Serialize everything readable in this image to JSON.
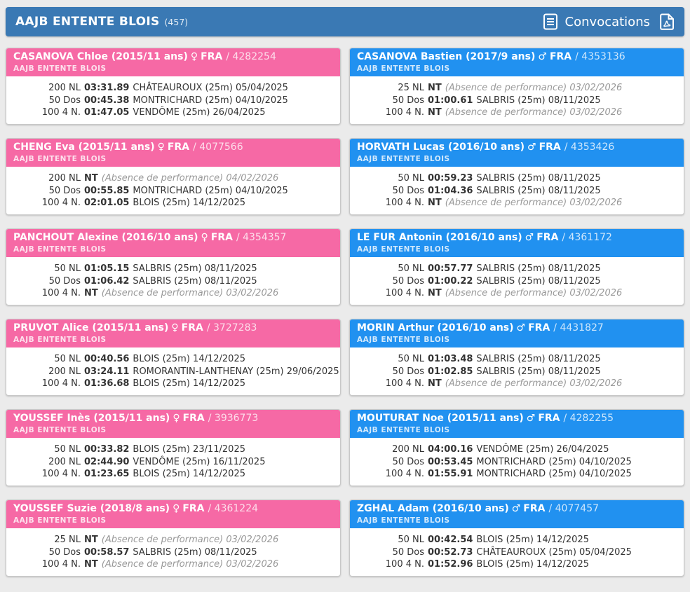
{
  "header": {
    "title": "AAJB ENTENTE BLOIS",
    "count": "(457)",
    "convocations_label": "Convocations"
  },
  "colors": {
    "bar_blue": "#3a79b4",
    "male_blue": "#2191f0",
    "female_pink": "#f669a5",
    "page_bg": "#ebebeb"
  },
  "swimmers": [
    {
      "name": "CASANOVA Chloe",
      "birth_age": "(2015/11 ans)",
      "gender": "female",
      "gender_symbol": "♀",
      "nation": "FRA",
      "license": "4282254",
      "club": "AAJB ENTENTE BLOIS",
      "performances": [
        {
          "event": "200 NL",
          "time": "03:31.89",
          "note": "CHÂTEAUROUX (25m) 05/04/2025",
          "absence": false
        },
        {
          "event": "50 Dos",
          "time": "00:45.38",
          "note": "MONTRICHARD (25m) 04/10/2025",
          "absence": false
        },
        {
          "event": "100 4 N.",
          "time": "01:47.05",
          "note": "VENDÔME (25m) 26/04/2025",
          "absence": false
        }
      ]
    },
    {
      "name": "CASANOVA Bastien",
      "birth_age": "(2017/9 ans)",
      "gender": "male",
      "gender_symbol": "♂",
      "nation": "FRA",
      "license": "4353136",
      "club": "AAJB ENTENTE BLOIS",
      "performances": [
        {
          "event": "25 NL",
          "time": "NT",
          "note": "(Absence de performance) 03/02/2026",
          "absence": true
        },
        {
          "event": "50 Dos",
          "time": "01:00.61",
          "note": "SALBRIS (25m) 08/11/2025",
          "absence": false
        },
        {
          "event": "100 4 N.",
          "time": "NT",
          "note": "(Absence de performance) 03/02/2026",
          "absence": true
        }
      ]
    },
    {
      "name": "CHENG Eva",
      "birth_age": "(2015/11 ans)",
      "gender": "female",
      "gender_symbol": "♀",
      "nation": "FRA",
      "license": "4077566",
      "club": "AAJB ENTENTE BLOIS",
      "performances": [
        {
          "event": "200 NL",
          "time": "NT",
          "note": "(Absence de performance) 04/02/2026",
          "absence": true
        },
        {
          "event": "50 Dos",
          "time": "00:55.85",
          "note": "MONTRICHARD (25m) 04/10/2025",
          "absence": false
        },
        {
          "event": "100 4 N.",
          "time": "02:01.05",
          "note": "BLOIS (25m) 14/12/2025",
          "absence": false
        }
      ]
    },
    {
      "name": "HORVATH Lucas",
      "birth_age": "(2016/10 ans)",
      "gender": "male",
      "gender_symbol": "♂",
      "nation": "FRA",
      "license": "4353426",
      "club": "AAJB ENTENTE BLOIS",
      "performances": [
        {
          "event": "50 NL",
          "time": "00:59.23",
          "note": "SALBRIS (25m) 08/11/2025",
          "absence": false
        },
        {
          "event": "50 Dos",
          "time": "01:04.36",
          "note": "SALBRIS (25m) 08/11/2025",
          "absence": false
        },
        {
          "event": "100 4 N.",
          "time": "NT",
          "note": "(Absence de performance) 03/02/2026",
          "absence": true
        }
      ]
    },
    {
      "name": "PANCHOUT Alexine",
      "birth_age": "(2016/10 ans)",
      "gender": "female",
      "gender_symbol": "♀",
      "nation": "FRA",
      "license": "4354357",
      "club": "AAJB ENTENTE BLOIS",
      "performances": [
        {
          "event": "50 NL",
          "time": "01:05.15",
          "note": "SALBRIS (25m) 08/11/2025",
          "absence": false
        },
        {
          "event": "50 Dos",
          "time": "01:06.42",
          "note": "SALBRIS (25m) 08/11/2025",
          "absence": false
        },
        {
          "event": "100 4 N.",
          "time": "NT",
          "note": "(Absence de performance) 03/02/2026",
          "absence": true
        }
      ]
    },
    {
      "name": "LE FUR Antonin",
      "birth_age": "(2016/10 ans)",
      "gender": "male",
      "gender_symbol": "♂",
      "nation": "FRA",
      "license": "4361172",
      "club": "AAJB ENTENTE BLOIS",
      "performances": [
        {
          "event": "50 NL",
          "time": "00:57.77",
          "note": "SALBRIS (25m) 08/11/2025",
          "absence": false
        },
        {
          "event": "50 Dos",
          "time": "01:00.22",
          "note": "SALBRIS (25m) 08/11/2025",
          "absence": false
        },
        {
          "event": "100 4 N.",
          "time": "NT",
          "note": "(Absence de performance) 03/02/2026",
          "absence": true
        }
      ]
    },
    {
      "name": "PRUVOT Alice",
      "birth_age": "(2015/11 ans)",
      "gender": "female",
      "gender_symbol": "♀",
      "nation": "FRA",
      "license": "3727283",
      "club": "AAJB ENTENTE BLOIS",
      "performances": [
        {
          "event": "50 NL",
          "time": "00:40.56",
          "note": "BLOIS (25m) 14/12/2025",
          "absence": false
        },
        {
          "event": "200 NL",
          "time": "03:24.11",
          "note": "ROMORANTIN-LANTHENAY (25m) 29/06/2025",
          "absence": false
        },
        {
          "event": "100 4 N.",
          "time": "01:36.68",
          "note": "BLOIS (25m) 14/12/2025",
          "absence": false
        }
      ]
    },
    {
      "name": "MORIN Arthur",
      "birth_age": "(2016/10 ans)",
      "gender": "male",
      "gender_symbol": "♂",
      "nation": "FRA",
      "license": "4431827",
      "club": "AAJB ENTENTE BLOIS",
      "performances": [
        {
          "event": "50 NL",
          "time": "01:03.48",
          "note": "SALBRIS (25m) 08/11/2025",
          "absence": false
        },
        {
          "event": "50 Dos",
          "time": "01:02.85",
          "note": "SALBRIS (25m) 08/11/2025",
          "absence": false
        },
        {
          "event": "100 4 N.",
          "time": "NT",
          "note": "(Absence de performance) 03/02/2026",
          "absence": true
        }
      ]
    },
    {
      "name": "YOUSSEF Inès",
      "birth_age": "(2015/11 ans)",
      "gender": "female",
      "gender_symbol": "♀",
      "nation": "FRA",
      "license": "3936773",
      "club": "AAJB ENTENTE BLOIS",
      "performances": [
        {
          "event": "50 NL",
          "time": "00:33.82",
          "note": "BLOIS (25m) 23/11/2025",
          "absence": false
        },
        {
          "event": "200 NL",
          "time": "02:44.90",
          "note": "VENDÔME (25m) 16/11/2025",
          "absence": false
        },
        {
          "event": "100 4 N.",
          "time": "01:23.65",
          "note": "BLOIS (25m) 14/12/2025",
          "absence": false
        }
      ]
    },
    {
      "name": "MOUTURAT Noe",
      "birth_age": "(2015/11 ans)",
      "gender": "male",
      "gender_symbol": "♂",
      "nation": "FRA",
      "license": "4282255",
      "club": "AAJB ENTENTE BLOIS",
      "performances": [
        {
          "event": "200 NL",
          "time": "04:00.16",
          "note": "VENDÔME (25m) 26/04/2025",
          "absence": false
        },
        {
          "event": "50 Dos",
          "time": "00:53.45",
          "note": "MONTRICHARD (25m) 04/10/2025",
          "absence": false
        },
        {
          "event": "100 4 N.",
          "time": "01:55.91",
          "note": "MONTRICHARD (25m) 04/10/2025",
          "absence": false
        }
      ]
    },
    {
      "name": "YOUSSEF Suzie",
      "birth_age": "(2018/8 ans)",
      "gender": "female",
      "gender_symbol": "♀",
      "nation": "FRA",
      "license": "4361224",
      "club": "AAJB ENTENTE BLOIS",
      "performances": [
        {
          "event": "25 NL",
          "time": "NT",
          "note": "(Absence de performance) 03/02/2026",
          "absence": true
        },
        {
          "event": "50 Dos",
          "time": "00:58.57",
          "note": "SALBRIS (25m) 08/11/2025",
          "absence": false
        },
        {
          "event": "100 4 N.",
          "time": "NT",
          "note": "(Absence de performance) 03/02/2026",
          "absence": true
        }
      ]
    },
    {
      "name": "ZGHAL Adam",
      "birth_age": "(2016/10 ans)",
      "gender": "male",
      "gender_symbol": "♂",
      "nation": "FRA",
      "license": "4077457",
      "club": "AAJB ENTENTE BLOIS",
      "performances": [
        {
          "event": "50 NL",
          "time": "00:42.54",
          "note": "BLOIS (25m) 14/12/2025",
          "absence": false
        },
        {
          "event": "50 Dos",
          "time": "00:52.73",
          "note": "CHÂTEAUROUX (25m) 05/04/2025",
          "absence": false
        },
        {
          "event": "100 4 N.",
          "time": "01:52.96",
          "note": "BLOIS (25m) 14/12/2025",
          "absence": false
        }
      ]
    }
  ]
}
